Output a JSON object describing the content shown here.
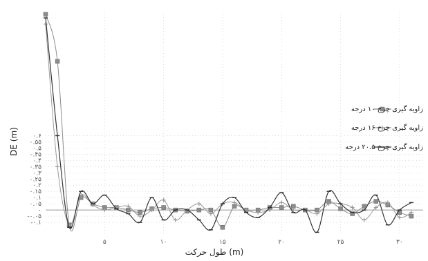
{
  "chart_data": {
    "type": "line",
    "xlabel": "طول حرکت (m)",
    "ylabel": "DE (m)",
    "xlim": [
      0,
      32
    ],
    "ylim": [
      -0.2,
      1.6
    ],
    "x_ticks": [
      5,
      10,
      15,
      20,
      25,
      30
    ],
    "x_tick_labels": [
      "۵",
      "۱۰",
      "۱۵",
      "۲۰",
      "۲۵",
      "۳۰"
    ],
    "y_ticks": [
      -0.1,
      -0.05,
      0,
      0.05,
      0.1,
      0.15,
      0.2,
      0.25,
      0.3,
      0.35,
      0.4,
      0.45,
      0.5,
      0.55,
      0.6
    ],
    "y_tick_labels": [
      "-۰.۱",
      "-۰.۰۵",
      "۰",
      "۰.۰۵",
      "۰.۱",
      "۰.۱۵",
      "۰.۲",
      "۰.۲۵",
      "۰.۳",
      "۰.۳۵",
      "۰.۴",
      "۰.۴۵",
      "۰.۵",
      "۰.۵۵",
      "۰.۶"
    ],
    "legend_position": "right",
    "grid": true,
    "series": [
      {
        "name": "زاویه گیری چرخ ۱۰ درجه",
        "color": "#8c8c8c",
        "marker": "square",
        "x": [
          0,
          1,
          2,
          3,
          4,
          5,
          6,
          7,
          8,
          9,
          10,
          11,
          12,
          13,
          14,
          15,
          16,
          17,
          18,
          19,
          20,
          21,
          22,
          23,
          24,
          25,
          26,
          27,
          28,
          29,
          30,
          31
        ],
        "y": [
          1.58,
          1.2,
          -0.12,
          0.1,
          0.05,
          0.02,
          0.02,
          0.0,
          -0.02,
          0.01,
          0.02,
          0.0,
          -0.01,
          0.0,
          0.0,
          -0.14,
          0.03,
          0.0,
          0.0,
          0.02,
          0.02,
          0.03,
          0.0,
          0.0,
          0.07,
          0.01,
          -0.03,
          0.03,
          0.07,
          0.04,
          -0.02,
          -0.05
        ]
      },
      {
        "name": "زاویه گیری چرخ ۱۶ درجه",
        "color": "#9a9a9a",
        "marker": "cross",
        "x": [
          0,
          1,
          2,
          3,
          4,
          5,
          6,
          7,
          8,
          9,
          10,
          11,
          12,
          13,
          14,
          15,
          16,
          17,
          18,
          19,
          20,
          21,
          22,
          23,
          24,
          25,
          26,
          27,
          28,
          29,
          30,
          31
        ],
        "y": [
          1.5,
          0.35,
          -0.12,
          0.12,
          0.04,
          0.0,
          0.02,
          0.03,
          -0.05,
          0.0,
          0.08,
          -0.08,
          0.0,
          0.05,
          -0.03,
          0.05,
          0.06,
          0.0,
          -0.02,
          0.0,
          0.06,
          0.0,
          0.0,
          -0.03,
          0.05,
          0.05,
          0.02,
          -0.08,
          0.02,
          0.06,
          -0.06,
          -0.02
        ]
      },
      {
        "name": "زاویه گیری چرخ ۲۰.۵ درجه",
        "color": "#333333",
        "marker": "line",
        "x": [
          0,
          1,
          2,
          3,
          4,
          5,
          6,
          7,
          8,
          9,
          10,
          11,
          12,
          13,
          14,
          15,
          16,
          17,
          18,
          19,
          20,
          21,
          22,
          23,
          24,
          25,
          26,
          27,
          28,
          29,
          30,
          31
        ],
        "y": [
          1.55,
          0.6,
          -0.14,
          0.15,
          0.05,
          0.12,
          0.01,
          -0.03,
          -0.1,
          0.1,
          -0.08,
          0.0,
          0.0,
          -0.08,
          -0.16,
          0.05,
          0.1,
          -0.02,
          -0.06,
          0.02,
          0.14,
          -0.02,
          0.0,
          -0.18,
          0.15,
          0.05,
          -0.02,
          0.0,
          0.12,
          -0.12,
          0.0,
          0.06
        ]
      }
    ]
  }
}
